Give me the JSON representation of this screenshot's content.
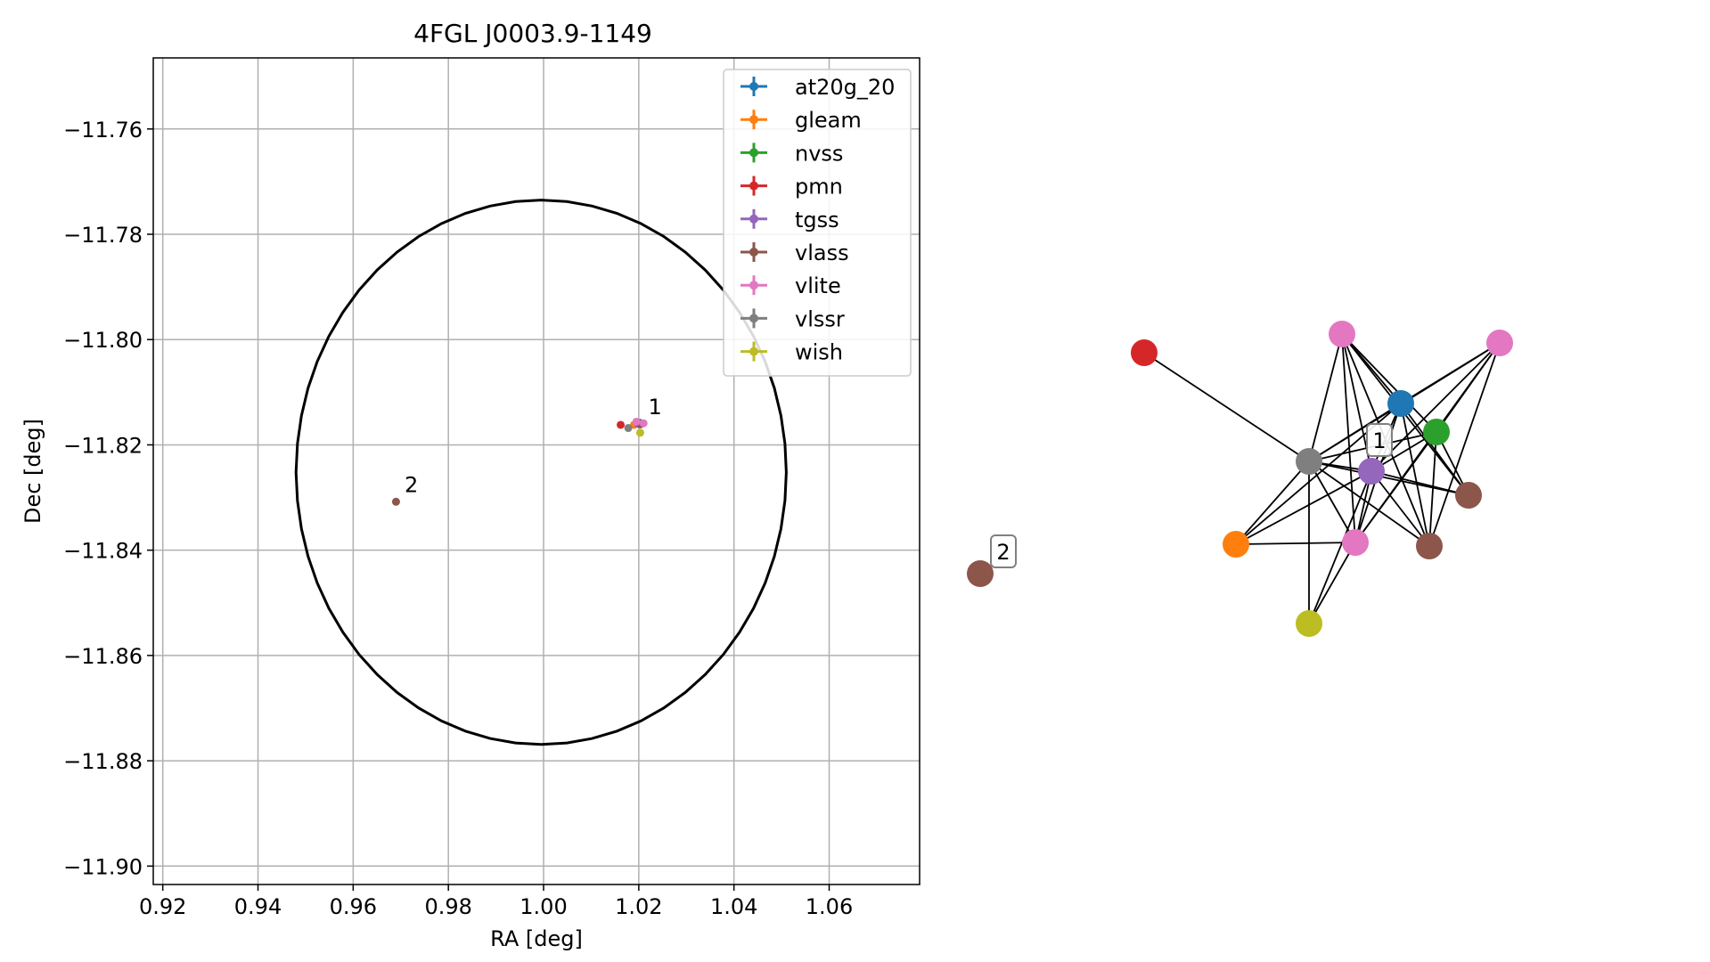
{
  "chart_data": [
    {
      "type": "scatter",
      "title": "4FGL J0003.9-1149",
      "xlabel": "RA [deg]",
      "ylabel": "Dec [deg]",
      "xlim": [
        0.918,
        1.079
      ],
      "ylim": [
        -11.9035,
        -11.7465
      ],
      "xticks": [
        0.92,
        0.94,
        0.96,
        0.98,
        1.0,
        1.02,
        1.04,
        1.06
      ],
      "xtick_labels": [
        "0.92",
        "0.94",
        "0.96",
        "0.98",
        "1.00",
        "1.02",
        "1.04",
        "1.06"
      ],
      "yticks": [
        -11.76,
        -11.78,
        -11.8,
        -11.82,
        -11.84,
        -11.86,
        -11.88,
        -11.9
      ],
      "ytick_labels": [
        "−11.76",
        "−11.78",
        "−11.80",
        "−11.82",
        "−11.84",
        "−11.86",
        "−11.88",
        "−11.90"
      ],
      "grid": true,
      "legend_position": "upper-right",
      "ellipse": {
        "center_ra": 0.9995,
        "center_dec": -11.8252,
        "semi_ra": 0.0515,
        "semi_dec": 0.0517
      },
      "series": [
        {
          "name": "at20g_20",
          "color": "#1f77b4",
          "points": [
            [
              1.0202,
              -11.8158
            ]
          ]
        },
        {
          "name": "gleam",
          "color": "#ff7f0e",
          "points": [
            [
              1.019,
              -11.8162
            ]
          ]
        },
        {
          "name": "nvss",
          "color": "#2ca02c",
          "points": [
            [
              1.0204,
              -11.816
            ]
          ]
        },
        {
          "name": "pmn",
          "color": "#d62728",
          "points": [
            [
              1.0162,
              -11.8162
            ]
          ]
        },
        {
          "name": "tgss",
          "color": "#9467bd",
          "points": [
            [
              1.0198,
              -11.816
            ]
          ]
        },
        {
          "name": "vlass",
          "color": "#8c564b",
          "points": [
            [
              1.0203,
              -11.8161
            ],
            [
              0.969,
              -11.8308
            ]
          ]
        },
        {
          "name": "vlite",
          "color": "#e377c2",
          "points": [
            [
              1.0195,
              -11.8156
            ],
            [
              1.021,
              -11.8159
            ]
          ]
        },
        {
          "name": "vlssr",
          "color": "#7f7f7f",
          "points": [
            [
              1.0178,
              -11.8168
            ]
          ]
        },
        {
          "name": "wish",
          "color": "#bcbd22",
          "points": [
            [
              1.0203,
              -11.8177
            ]
          ]
        }
      ],
      "annotations": [
        {
          "text": "1",
          "ra": 1.022,
          "dec": -11.8142
        },
        {
          "text": "2",
          "ra": 0.9708,
          "dec": -11.829
        }
      ]
    },
    {
      "type": "network",
      "nodes": [
        {
          "id": "pmn",
          "color": "#d62728"
        },
        {
          "id": "vlite_a",
          "color": "#e377c2"
        },
        {
          "id": "vlite_b",
          "color": "#e377c2"
        },
        {
          "id": "at20g_20",
          "color": "#1f77b4"
        },
        {
          "id": "nvss",
          "color": "#2ca02c"
        },
        {
          "id": "vlssr",
          "color": "#7f7f7f"
        },
        {
          "id": "tgss",
          "color": "#9467bd"
        },
        {
          "id": "vlass_a",
          "color": "#8c564b"
        },
        {
          "id": "gleam",
          "color": "#ff7f0e"
        },
        {
          "id": "vlite_c",
          "color": "#e377c2"
        },
        {
          "id": "vlass_b",
          "color": "#8c564b"
        },
        {
          "id": "wish",
          "color": "#bcbd22"
        },
        {
          "id": "vlass_2",
          "color": "#8c564b"
        }
      ],
      "edges": [
        [
          "pmn",
          "vlssr"
        ],
        [
          "vlite_a",
          "at20g_20"
        ],
        [
          "vlite_a",
          "nvss"
        ],
        [
          "vlite_a",
          "vlssr"
        ],
        [
          "vlite_a",
          "tgss"
        ],
        [
          "vlite_a",
          "vlass_a"
        ],
        [
          "vlite_a",
          "vlite_c"
        ],
        [
          "vlite_a",
          "vlass_b"
        ],
        [
          "vlite_b",
          "at20g_20"
        ],
        [
          "vlite_b",
          "nvss"
        ],
        [
          "vlite_b",
          "vlssr"
        ],
        [
          "vlite_b",
          "tgss"
        ],
        [
          "vlite_b",
          "vlite_c"
        ],
        [
          "vlite_b",
          "vlass_b"
        ],
        [
          "at20g_20",
          "vlssr"
        ],
        [
          "at20g_20",
          "tgss"
        ],
        [
          "at20g_20",
          "vlite_c"
        ],
        [
          "at20g_20",
          "vlass_b"
        ],
        [
          "at20g_20",
          "vlass_a"
        ],
        [
          "at20g_20",
          "gleam"
        ],
        [
          "nvss",
          "vlssr"
        ],
        [
          "nvss",
          "tgss"
        ],
        [
          "nvss",
          "vlass_a"
        ],
        [
          "nvss",
          "vlite_c"
        ],
        [
          "nvss",
          "vlass_b"
        ],
        [
          "vlssr",
          "tgss"
        ],
        [
          "vlssr",
          "vlass_a"
        ],
        [
          "vlssr",
          "gleam"
        ],
        [
          "vlssr",
          "vlite_c"
        ],
        [
          "vlssr",
          "vlass_b"
        ],
        [
          "vlssr",
          "wish"
        ],
        [
          "tgss",
          "vlass_a"
        ],
        [
          "tgss",
          "gleam"
        ],
        [
          "tgss",
          "vlite_c"
        ],
        [
          "tgss",
          "vlass_b"
        ],
        [
          "tgss",
          "wish"
        ],
        [
          "gleam",
          "vlite_c"
        ],
        [
          "vlite_c",
          "wish"
        ]
      ],
      "group_labels": [
        {
          "text": "1",
          "near": "tgss"
        },
        {
          "text": "2",
          "near": "vlass_2"
        }
      ]
    }
  ]
}
